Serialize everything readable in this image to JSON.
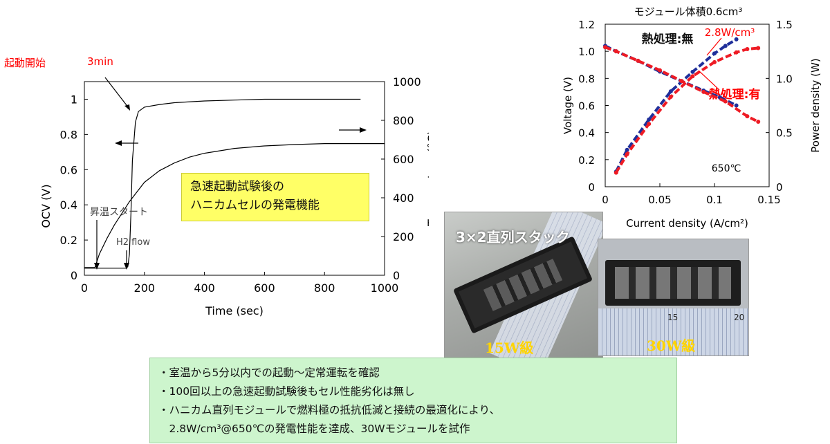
{
  "colors": {
    "red": "#ff0000",
    "blue": "#1f2f9a",
    "yellow": "#ffff66",
    "green_box": "#cdf5cd"
  },
  "annotations": {
    "start_label": "起動開始",
    "time_label": "3min",
    "heat_start": "昇温スタート",
    "h2_flow": "H2 flow",
    "info_box": [
      "急速起動試験後の",
      "ハニカムセルの発電機能"
    ]
  },
  "photos": {
    "stack_title": "3×2直列スタック",
    "left_caption": "15W級",
    "right_caption": "30W級",
    "ruler_numbers": [
      "15",
      "20"
    ]
  },
  "bullets": [
    "・室温から5分以内での起動～定常運転を確認",
    "・100回以上の急速起動試験後もセル性能劣化は無し",
    "・ハニカム直列モジュールで燃料極の抵抗低減と接続の最適化により、",
    "　2.8W/cm³@650℃の発電性能を達成、30Wモジュールを試作"
  ],
  "chart_data": [
    {
      "type": "line",
      "xlabel": "Time (sec)",
      "ylabel": "OCV (V)",
      "y2label": "Temperature (°C)",
      "xlim": [
        0,
        1000
      ],
      "ylim": [
        0,
        1.1
      ],
      "y2lim": [
        0,
        1000
      ],
      "x_ticks": [
        "0",
        "200",
        "400",
        "600",
        "800",
        "1000"
      ],
      "y_ticks": [
        "0",
        "0.2",
        "0.4",
        "0.6",
        "0.8",
        "1"
      ],
      "y2_ticks": [
        "0",
        "200",
        "400",
        "600",
        "800",
        "1000"
      ],
      "series": [
        {
          "axis": "left",
          "x": [
            0,
            140,
            145,
            150,
            155,
            160,
            170,
            180,
            200,
            250,
            300,
            400,
            500,
            600,
            700,
            800,
            920
          ],
          "y": [
            0.04,
            0.04,
            0.05,
            0.12,
            0.35,
            0.65,
            0.87,
            0.93,
            0.955,
            0.97,
            0.98,
            0.99,
            0.995,
            1.0,
            1.0,
            1.0,
            1.0
          ]
        },
        {
          "axis": "right",
          "x": [
            0,
            35,
            50,
            75,
            100,
            125,
            150,
            175,
            200,
            250,
            300,
            350,
            400,
            500,
            600,
            700,
            800,
            1000
          ],
          "y": [
            40,
            40,
            110,
            190,
            260,
            320,
            380,
            430,
            480,
            540,
            580,
            610,
            630,
            655,
            668,
            675,
            680,
            680
          ]
        }
      ]
    },
    {
      "type": "scatter",
      "title": "モジュール体積0.6cm³",
      "xlabel": "Current density (A/cm²)",
      "ylabel": "Voltage (V)",
      "y2label": "Power density (W)",
      "xlim": [
        0,
        0.15
      ],
      "ylim": [
        0,
        1.2
      ],
      "y2lim": [
        0,
        1.5
      ],
      "x_ticks": [
        "0",
        "0.05",
        "0.1",
        "0.15"
      ],
      "y_ticks": [
        "0",
        "0.2",
        "0.4",
        "0.6",
        "0.8",
        "1.0",
        "1.2"
      ],
      "y2_ticks": [
        "0",
        "0.5",
        "1.0",
        "1.5"
      ],
      "temperature_label": "650℃",
      "power_label": "2.8W/cm³",
      "series": [
        {
          "name": "熱処理:無",
          "color": "#1f2f9a",
          "voltage": {
            "x": [
              0,
              0.01,
              0.03,
              0.05,
              0.07,
              0.09,
              0.105,
              0.12
            ],
            "y": [
              1.04,
              1.0,
              0.93,
              0.85,
              0.78,
              0.71,
              0.66,
              0.6
            ]
          },
          "power": {
            "x": [
              0.01,
              0.02,
              0.04,
              0.06,
              0.08,
              0.1,
              0.11,
              0.12
            ],
            "y": [
              0.14,
              0.34,
              0.62,
              0.88,
              1.06,
              1.23,
              1.3,
              1.36
            ]
          }
        },
        {
          "name": "熱処理:有",
          "color": "#ee1b24",
          "voltage": {
            "x": [
              0,
              0.01,
              0.03,
              0.05,
              0.07,
              0.09,
              0.11,
              0.13,
              0.14
            ],
            "y": [
              1.03,
              1.0,
              0.93,
              0.86,
              0.78,
              0.7,
              0.63,
              0.52,
              0.48
            ]
          },
          "power": {
            "x": [
              0.01,
              0.02,
              0.04,
              0.06,
              0.08,
              0.1,
              0.12,
              0.13,
              0.14
            ],
            "y": [
              0.13,
              0.3,
              0.58,
              0.83,
              1.02,
              1.15,
              1.24,
              1.27,
              1.28
            ]
          }
        }
      ]
    }
  ]
}
